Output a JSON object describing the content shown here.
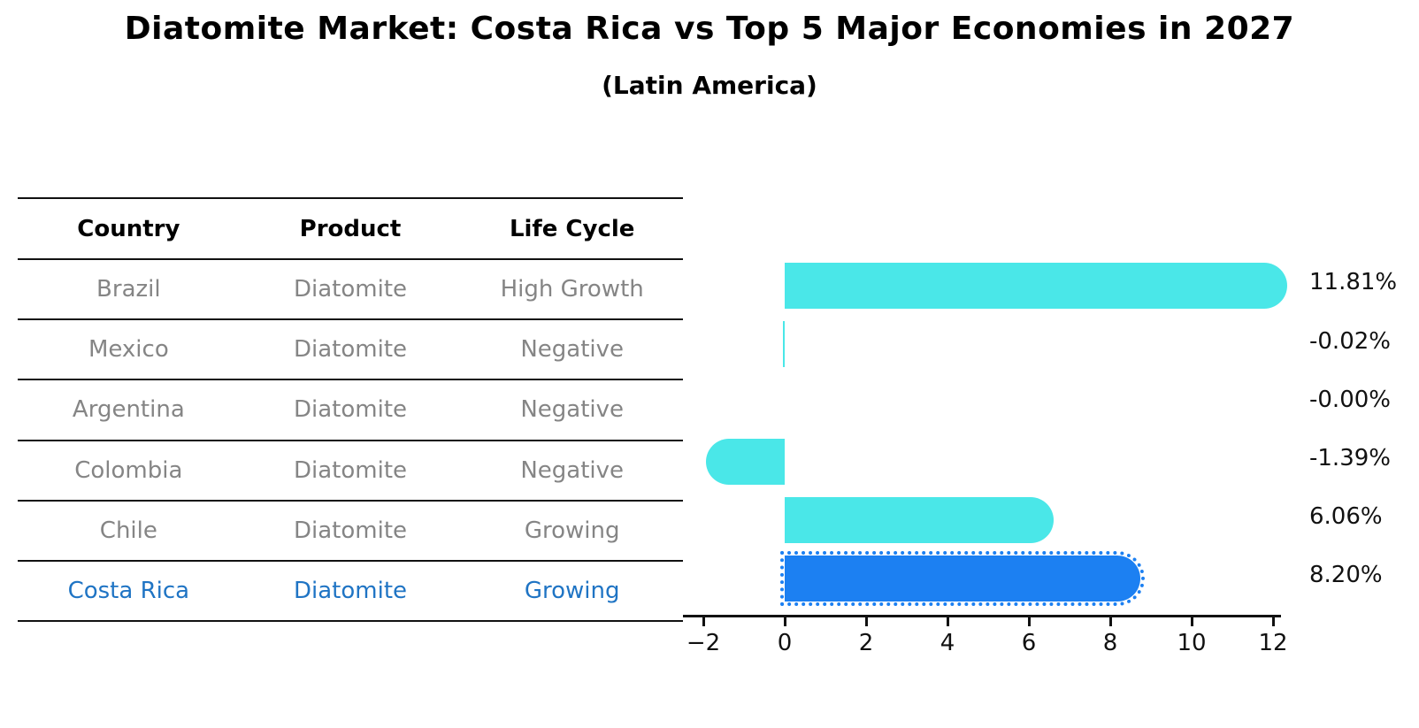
{
  "title": "Diatomite Market: Costa Rica vs Top 5 Major Economies in 2027",
  "subtitle": "(Latin America)",
  "table": {
    "headers": {
      "country": "Country",
      "product": "Product",
      "life_cycle": "Life Cycle"
    },
    "rows": [
      {
        "country": "Brazil",
        "product": "Diatomite",
        "life_cycle": "High Growth"
      },
      {
        "country": "Mexico",
        "product": "Diatomite",
        "life_cycle": "Negative"
      },
      {
        "country": "Argentina",
        "product": "Diatomite",
        "life_cycle": "Negative"
      },
      {
        "country": "Colombia",
        "product": "Diatomite",
        "life_cycle": "Negative"
      },
      {
        "country": "Chile",
        "product": "Diatomite",
        "life_cycle": "Growing"
      },
      {
        "country": "Costa Rica",
        "product": "Diatomite",
        "life_cycle": "Growing"
      }
    ],
    "highlight_row_index": 5
  },
  "chart_data": {
    "type": "bar",
    "orientation": "horizontal",
    "categories": [
      "Brazil",
      "Mexico",
      "Argentina",
      "Colombia",
      "Chile",
      "Costa Rica"
    ],
    "values": [
      11.81,
      -0.02,
      -0.0,
      -1.39,
      6.06,
      8.2
    ],
    "value_labels": [
      "11.81%",
      "-0.02%",
      "-0.00%",
      "-1.39%",
      "6.06%",
      "8.20%"
    ],
    "x_ticks": [
      -2,
      0,
      2,
      4,
      6,
      8,
      10,
      12
    ],
    "x_tick_labels": [
      "−2",
      "0",
      "2",
      "4",
      "6",
      "8",
      "10",
      "12"
    ],
    "xlim": [
      -2.5,
      12.3
    ],
    "grid": false,
    "legend": "none",
    "highlight_index": 5,
    "colors": {
      "bar": "#4AE7E8",
      "highlight_bar": "#1C80F2",
      "highlight_text": "#1F74C4",
      "axis": "#111111",
      "value_text": "#111111"
    }
  }
}
